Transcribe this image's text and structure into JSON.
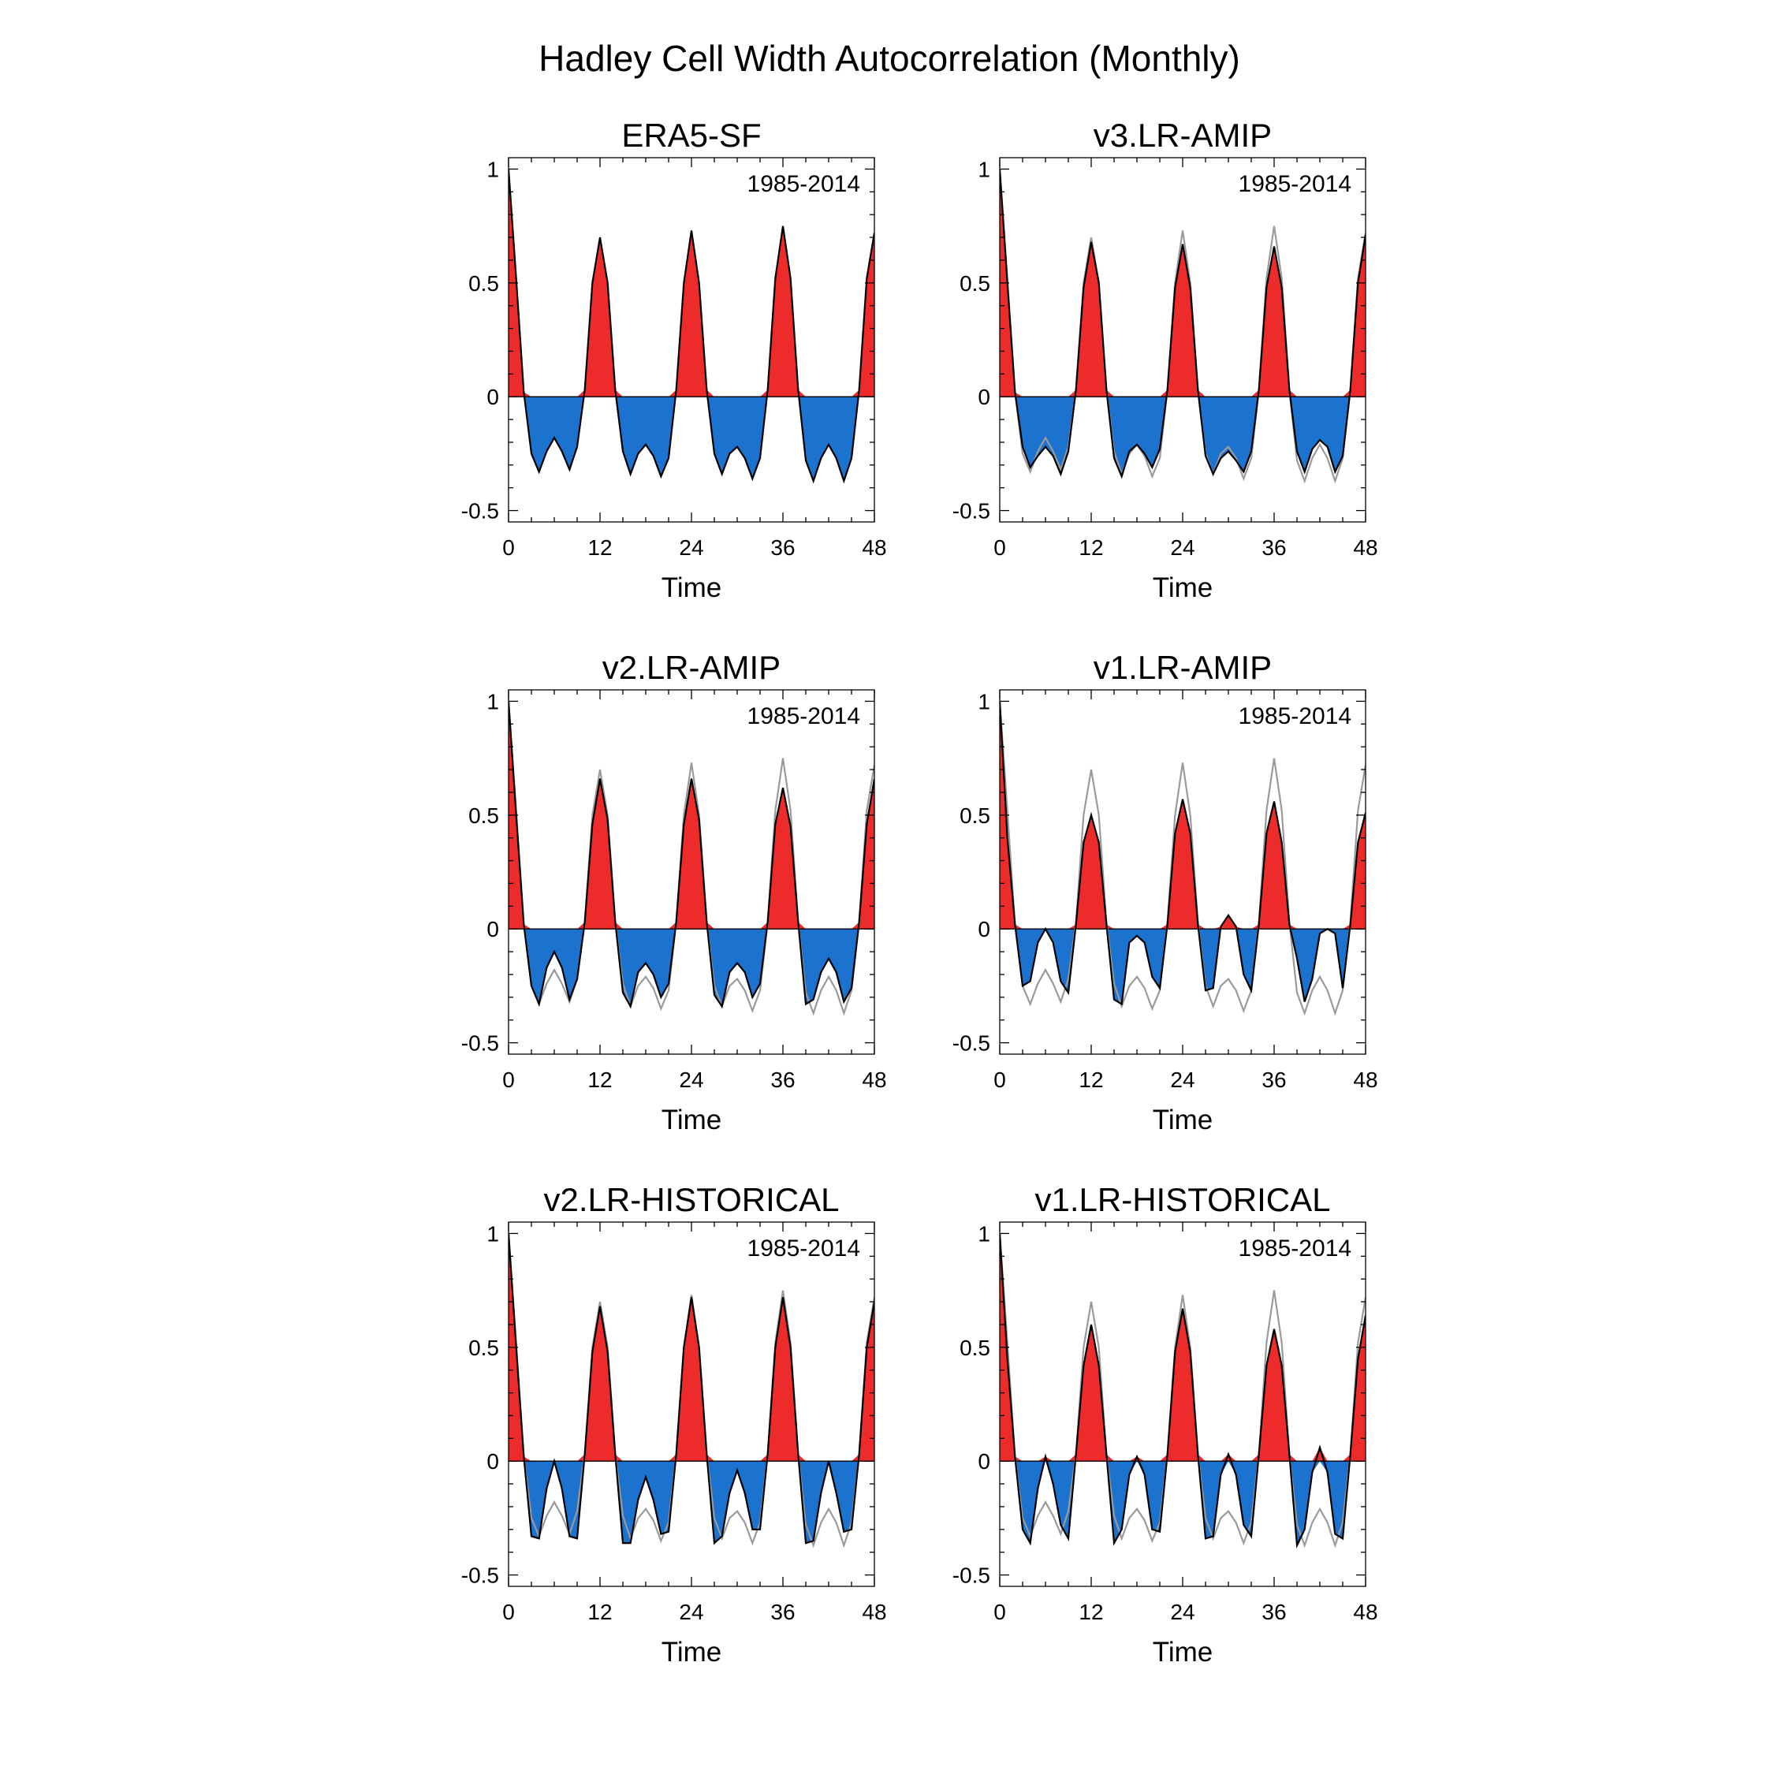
{
  "title": "Hadley Cell Width Autocorrelation (Monthly)",
  "colors": {
    "positive": "#ee2b2b",
    "negative": "#1c73cf",
    "model_line": "#000000",
    "reference_line": "#9a9a9a"
  },
  "chart_data": [
    {
      "type": "area",
      "title": "ERA5-SF",
      "annotation": "1985-2014",
      "xlabel": "Time",
      "ylabel": "",
      "xlim": [
        0,
        48
      ],
      "ylim": [
        -0.55,
        1.05
      ],
      "xticks": [
        "0",
        "12",
        "24",
        "36",
        "48"
      ],
      "yticks": [
        "1",
        "0.5",
        "0",
        "-0.5"
      ],
      "series": [
        {
          "name": "ERA5-SF",
          "values": [
            1.0,
            0.52,
            0.02,
            -0.25,
            -0.33,
            -0.24,
            -0.18,
            -0.24,
            -0.32,
            -0.22,
            0.03,
            0.5,
            0.7,
            0.5,
            0.03,
            -0.24,
            -0.34,
            -0.25,
            -0.21,
            -0.26,
            -0.35,
            -0.27,
            0.03,
            0.5,
            0.73,
            0.5,
            0.03,
            -0.25,
            -0.34,
            -0.25,
            -0.22,
            -0.27,
            -0.36,
            -0.27,
            0.03,
            0.52,
            0.75,
            0.52,
            0.03,
            -0.28,
            -0.37,
            -0.27,
            -0.21,
            -0.27,
            -0.37,
            -0.27,
            0.03,
            0.52,
            0.72
          ]
        }
      ]
    },
    {
      "type": "area",
      "title": "v3.LR-AMIP",
      "annotation": "1985-2014",
      "xlabel": "Time",
      "ylabel": "",
      "xlim": [
        0,
        48
      ],
      "ylim": [
        -0.55,
        1.05
      ],
      "xticks": [
        "0",
        "12",
        "24",
        "36",
        "48"
      ],
      "yticks": [
        "1",
        "0.5",
        "0",
        "-0.5"
      ],
      "series": [
        {
          "name": "v3.LR-AMIP",
          "values": [
            1.0,
            0.5,
            0.02,
            -0.22,
            -0.31,
            -0.26,
            -0.22,
            -0.26,
            -0.34,
            -0.24,
            0.03,
            0.48,
            0.68,
            0.5,
            0.03,
            -0.27,
            -0.35,
            -0.24,
            -0.21,
            -0.25,
            -0.31,
            -0.23,
            0.03,
            0.48,
            0.67,
            0.48,
            0.03,
            -0.26,
            -0.34,
            -0.27,
            -0.24,
            -0.28,
            -0.33,
            -0.24,
            0.03,
            0.48,
            0.66,
            0.48,
            0.03,
            -0.24,
            -0.33,
            -0.23,
            -0.19,
            -0.22,
            -0.33,
            -0.26,
            0.03,
            0.5,
            0.71
          ]
        },
        {
          "name": "ERA5-SF",
          "values": [
            1.0,
            0.52,
            0.02,
            -0.25,
            -0.33,
            -0.24,
            -0.18,
            -0.24,
            -0.32,
            -0.22,
            0.03,
            0.5,
            0.7,
            0.5,
            0.03,
            -0.24,
            -0.34,
            -0.25,
            -0.21,
            -0.26,
            -0.35,
            -0.27,
            0.03,
            0.5,
            0.73,
            0.5,
            0.03,
            -0.25,
            -0.34,
            -0.25,
            -0.22,
            -0.27,
            -0.36,
            -0.27,
            0.03,
            0.52,
            0.75,
            0.52,
            0.03,
            -0.28,
            -0.37,
            -0.27,
            -0.21,
            -0.27,
            -0.37,
            -0.27,
            0.03,
            0.52,
            0.72
          ]
        }
      ]
    },
    {
      "type": "area",
      "title": "v2.LR-AMIP",
      "annotation": "1985-2014",
      "xlabel": "Time",
      "ylabel": "",
      "xlim": [
        0,
        48
      ],
      "ylim": [
        -0.55,
        1.05
      ],
      "xticks": [
        "0",
        "12",
        "24",
        "36",
        "48"
      ],
      "yticks": [
        "1",
        "0.5",
        "0",
        "-0.5"
      ],
      "series": [
        {
          "name": "v2.LR-AMIP",
          "values": [
            1.0,
            0.5,
            0.02,
            -0.25,
            -0.33,
            -0.17,
            -0.1,
            -0.17,
            -0.31,
            -0.22,
            0.03,
            0.46,
            0.66,
            0.48,
            0.03,
            -0.28,
            -0.34,
            -0.19,
            -0.15,
            -0.2,
            -0.3,
            -0.24,
            0.03,
            0.46,
            0.66,
            0.48,
            0.03,
            -0.29,
            -0.34,
            -0.19,
            -0.15,
            -0.19,
            -0.3,
            -0.24,
            0.03,
            0.46,
            0.62,
            0.45,
            0.03,
            -0.33,
            -0.31,
            -0.19,
            -0.13,
            -0.19,
            -0.32,
            -0.26,
            0.03,
            0.46,
            0.66
          ]
        },
        {
          "name": "ERA5-SF",
          "values": [
            1.0,
            0.52,
            0.02,
            -0.25,
            -0.33,
            -0.24,
            -0.18,
            -0.24,
            -0.32,
            -0.22,
            0.03,
            0.5,
            0.7,
            0.5,
            0.03,
            -0.24,
            -0.34,
            -0.25,
            -0.21,
            -0.26,
            -0.35,
            -0.27,
            0.03,
            0.5,
            0.73,
            0.5,
            0.03,
            -0.25,
            -0.34,
            -0.25,
            -0.22,
            -0.27,
            -0.36,
            -0.27,
            0.03,
            0.52,
            0.75,
            0.52,
            0.03,
            -0.28,
            -0.37,
            -0.27,
            -0.21,
            -0.27,
            -0.37,
            -0.27,
            0.03,
            0.52,
            0.72
          ]
        }
      ]
    },
    {
      "type": "area",
      "title": "v1.LR-AMIP",
      "annotation": "1985-2014",
      "xlabel": "Time",
      "ylabel": "",
      "xlim": [
        0,
        48
      ],
      "ylim": [
        -0.55,
        1.05
      ],
      "xticks": [
        "0",
        "12",
        "24",
        "36",
        "48"
      ],
      "yticks": [
        "1",
        "0.5",
        "0",
        "-0.5"
      ],
      "series": [
        {
          "name": "v1.LR-AMIP",
          "values": [
            1.0,
            0.4,
            0.02,
            -0.25,
            -0.23,
            -0.06,
            0.0,
            -0.06,
            -0.23,
            -0.28,
            0.02,
            0.38,
            0.5,
            0.38,
            0.02,
            -0.31,
            -0.33,
            -0.06,
            -0.03,
            -0.06,
            -0.21,
            -0.26,
            0.02,
            0.42,
            0.57,
            0.42,
            0.02,
            -0.27,
            -0.26,
            0.01,
            0.06,
            0.01,
            -0.2,
            -0.27,
            0.02,
            0.42,
            0.56,
            0.38,
            0.02,
            -0.13,
            -0.32,
            -0.22,
            -0.02,
            0.0,
            -0.02,
            -0.26,
            0.02,
            0.38,
            0.51
          ]
        },
        {
          "name": "ERA5-SF",
          "values": [
            1.0,
            0.52,
            0.02,
            -0.25,
            -0.33,
            -0.24,
            -0.18,
            -0.24,
            -0.32,
            -0.22,
            0.03,
            0.5,
            0.7,
            0.5,
            0.03,
            -0.24,
            -0.34,
            -0.25,
            -0.21,
            -0.26,
            -0.35,
            -0.27,
            0.03,
            0.5,
            0.73,
            0.5,
            0.03,
            -0.25,
            -0.34,
            -0.25,
            -0.22,
            -0.27,
            -0.36,
            -0.27,
            0.03,
            0.52,
            0.75,
            0.52,
            0.03,
            -0.28,
            -0.37,
            -0.27,
            -0.21,
            -0.27,
            -0.37,
            -0.27,
            0.03,
            0.52,
            0.72
          ]
        }
      ]
    },
    {
      "type": "area",
      "title": "v2.LR-HISTORICAL",
      "annotation": "1985-2014",
      "xlabel": "Time",
      "ylabel": "",
      "xlim": [
        0,
        48
      ],
      "ylim": [
        -0.55,
        1.05
      ],
      "xticks": [
        "0",
        "12",
        "24",
        "36",
        "48"
      ],
      "yticks": [
        "1",
        "0.5",
        "0",
        "-0.5"
      ],
      "series": [
        {
          "name": "v2.LR-HISTORICAL",
          "values": [
            1.0,
            0.5,
            0.02,
            -0.33,
            -0.34,
            -0.12,
            0.0,
            -0.12,
            -0.33,
            -0.34,
            0.03,
            0.48,
            0.68,
            0.48,
            0.03,
            -0.36,
            -0.36,
            -0.17,
            -0.07,
            -0.17,
            -0.32,
            -0.31,
            0.03,
            0.5,
            0.72,
            0.5,
            0.03,
            -0.36,
            -0.33,
            -0.14,
            -0.04,
            -0.14,
            -0.3,
            -0.3,
            0.03,
            0.5,
            0.72,
            0.5,
            0.03,
            -0.36,
            -0.35,
            -0.14,
            0.0,
            -0.14,
            -0.31,
            -0.3,
            0.03,
            0.5,
            0.7
          ]
        },
        {
          "name": "ERA5-SF",
          "values": [
            1.0,
            0.52,
            0.02,
            -0.25,
            -0.33,
            -0.24,
            -0.18,
            -0.24,
            -0.32,
            -0.22,
            0.03,
            0.5,
            0.7,
            0.5,
            0.03,
            -0.24,
            -0.34,
            -0.25,
            -0.21,
            -0.26,
            -0.35,
            -0.27,
            0.03,
            0.5,
            0.73,
            0.5,
            0.03,
            -0.25,
            -0.34,
            -0.25,
            -0.22,
            -0.27,
            -0.36,
            -0.27,
            0.03,
            0.52,
            0.75,
            0.52,
            0.03,
            -0.28,
            -0.37,
            -0.27,
            -0.21,
            -0.27,
            -0.37,
            -0.27,
            0.03,
            0.52,
            0.72
          ]
        }
      ]
    },
    {
      "type": "area",
      "title": "v1.LR-HISTORICAL",
      "annotation": "1985-2014",
      "xlabel": "Time",
      "ylabel": "",
      "xlim": [
        0,
        48
      ],
      "ylim": [
        -0.55,
        1.05
      ],
      "xticks": [
        "0",
        "12",
        "24",
        "36",
        "48"
      ],
      "yticks": [
        "1",
        "0.5",
        "0",
        "-0.5"
      ],
      "series": [
        {
          "name": "v1.LR-HISTORICAL",
          "values": [
            1.0,
            0.45,
            0.02,
            -0.3,
            -0.36,
            -0.12,
            0.02,
            -0.1,
            -0.28,
            -0.34,
            0.03,
            0.42,
            0.6,
            0.42,
            0.03,
            -0.36,
            -0.3,
            -0.06,
            0.02,
            -0.06,
            -0.3,
            -0.31,
            0.03,
            0.48,
            0.67,
            0.48,
            0.03,
            -0.34,
            -0.33,
            -0.06,
            0.03,
            -0.06,
            -0.28,
            -0.33,
            0.03,
            0.42,
            0.58,
            0.42,
            0.03,
            -0.37,
            -0.3,
            -0.05,
            0.06,
            -0.05,
            -0.32,
            -0.34,
            0.03,
            0.45,
            0.64
          ]
        },
        {
          "name": "ERA5-SF",
          "values": [
            1.0,
            0.52,
            0.02,
            -0.25,
            -0.33,
            -0.24,
            -0.18,
            -0.24,
            -0.32,
            -0.22,
            0.03,
            0.5,
            0.7,
            0.5,
            0.03,
            -0.24,
            -0.34,
            -0.25,
            -0.21,
            -0.26,
            -0.35,
            -0.27,
            0.03,
            0.5,
            0.73,
            0.5,
            0.03,
            -0.25,
            -0.34,
            -0.25,
            -0.22,
            -0.27,
            -0.36,
            -0.27,
            0.03,
            0.52,
            0.75,
            0.52,
            0.03,
            -0.28,
            -0.37,
            -0.27,
            -0.21,
            -0.27,
            -0.37,
            -0.27,
            0.03,
            0.52,
            0.72
          ]
        }
      ]
    }
  ]
}
